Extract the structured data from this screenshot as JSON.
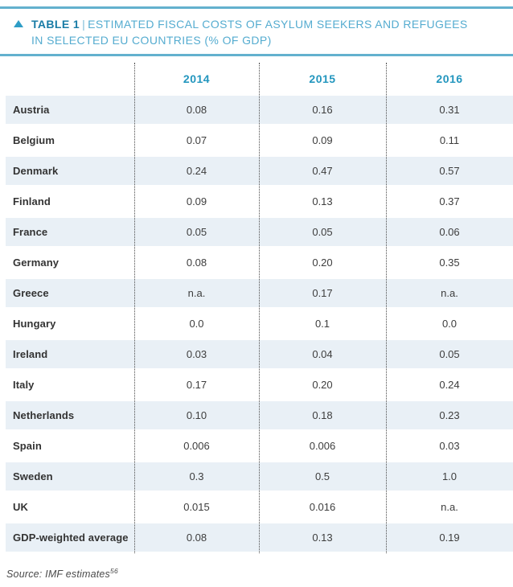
{
  "colors": {
    "rule_teal": "#63b1ce",
    "title_light_teal": "#55acd0",
    "title_dark_teal": "#1a7ca6",
    "year_header_teal": "#2396be",
    "row_stripe": "#e9f0f6",
    "body_text": "#3d3d3d",
    "dotted_line": "#4b4b4b"
  },
  "header": {
    "icon": "triangle-up",
    "table_label": "TABLE 1",
    "separator": "|",
    "title_line1": "ESTIMATED FISCAL COSTS OF ASYLUM SEEKERS AND REFUGEES",
    "title_line2": "IN SELECTED EU COUNTRIES (% OF GDP)"
  },
  "table": {
    "columns": [
      "2014",
      "2015",
      "2016"
    ],
    "rows": [
      {
        "label": "Austria",
        "values": [
          "0.08",
          "0.16",
          "0.31"
        ]
      },
      {
        "label": "Belgium",
        "values": [
          "0.07",
          "0.09",
          "0.11"
        ]
      },
      {
        "label": "Denmark",
        "values": [
          "0.24",
          "0.47",
          "0.57"
        ]
      },
      {
        "label": "Finland",
        "values": [
          "0.09",
          "0.13",
          "0.37"
        ]
      },
      {
        "label": "France",
        "values": [
          "0.05",
          "0.05",
          "0.06"
        ]
      },
      {
        "label": "Germany",
        "values": [
          "0.08",
          "0.20",
          "0.35"
        ]
      },
      {
        "label": "Greece",
        "values": [
          "n.a.",
          "0.17",
          "n.a."
        ]
      },
      {
        "label": "Hungary",
        "values": [
          "0.0",
          "0.1",
          "0.0"
        ]
      },
      {
        "label": "Ireland",
        "values": [
          "0.03",
          "0.04",
          "0.05"
        ]
      },
      {
        "label": "Italy",
        "values": [
          "0.17",
          "0.20",
          "0.24"
        ]
      },
      {
        "label": "Netherlands",
        "values": [
          "0.10",
          "0.18",
          "0.23"
        ]
      },
      {
        "label": "Spain",
        "values": [
          "0.006",
          "0.006",
          "0.03"
        ]
      },
      {
        "label": "Sweden",
        "values": [
          "0.3",
          "0.5",
          "1.0"
        ]
      },
      {
        "label": "UK",
        "values": [
          "0.015",
          "0.016",
          "n.a."
        ]
      },
      {
        "label": "GDP-weighted average",
        "values": [
          "0.08",
          "0.13",
          "0.19"
        ]
      }
    ]
  },
  "chart_data": {
    "type": "table",
    "title": "TABLE 1 | ESTIMATED FISCAL COSTS OF ASYLUM SEEKERS AND REFUGEES IN SELECTED EU COUNTRIES (% OF GDP)",
    "columns": [
      "2014",
      "2015",
      "2016"
    ],
    "rows": [
      "Austria",
      "Belgium",
      "Denmark",
      "Finland",
      "France",
      "Germany",
      "Greece",
      "Hungary",
      "Ireland",
      "Italy",
      "Netherlands",
      "Spain",
      "Sweden",
      "UK",
      "GDP-weighted average"
    ],
    "values": [
      [
        "0.08",
        "0.16",
        "0.31"
      ],
      [
        "0.07",
        "0.09",
        "0.11"
      ],
      [
        "0.24",
        "0.47",
        "0.57"
      ],
      [
        "0.09",
        "0.13",
        "0.37"
      ],
      [
        "0.05",
        "0.05",
        "0.06"
      ],
      [
        "0.08",
        "0.20",
        "0.35"
      ],
      [
        "n.a.",
        "0.17",
        "n.a."
      ],
      [
        "0.0",
        "0.1",
        "0.0"
      ],
      [
        "0.03",
        "0.04",
        "0.05"
      ],
      [
        "0.17",
        "0.20",
        "0.24"
      ],
      [
        "0.10",
        "0.18",
        "0.23"
      ],
      [
        "0.006",
        "0.006",
        "0.03"
      ],
      [
        "0.3",
        "0.5",
        "1.0"
      ],
      [
        "0.015",
        "0.016",
        "n.a."
      ],
      [
        "0.08",
        "0.13",
        "0.19"
      ]
    ]
  },
  "footer": {
    "source_text": "Source: IMF estimates",
    "source_superscript": "56"
  }
}
